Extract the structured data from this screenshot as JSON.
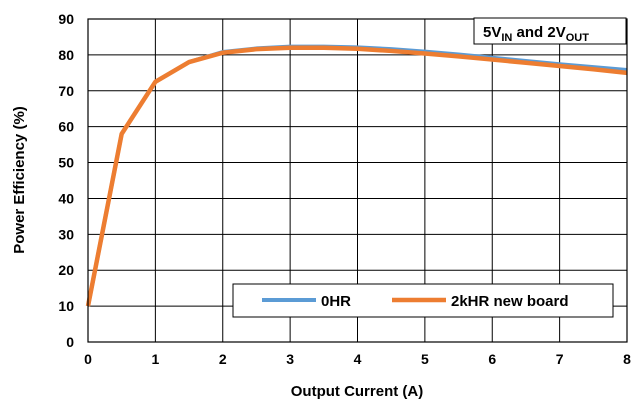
{
  "chart_data": {
    "type": "line",
    "xlabel": "Output Current (A)",
    "ylabel": "Power Efficiency (%)",
    "xlim": [
      0,
      8
    ],
    "ylim": [
      0,
      90
    ],
    "x_ticks": [
      0,
      1,
      2,
      3,
      4,
      5,
      6,
      7,
      8
    ],
    "y_ticks": [
      0,
      10,
      20,
      30,
      40,
      50,
      60,
      70,
      80,
      90
    ],
    "grid": true,
    "annotation": {
      "base1": "5V",
      "sub1": "IN",
      "middle": " and 2V",
      "sub2": "OUT",
      "position": "top-right"
    },
    "legend": {
      "position": "bottom-right",
      "entries": [
        "0HR",
        "2kHR new board"
      ]
    },
    "colors": {
      "series_0HR": "#5b9bd5",
      "series_2kHR": "#ed7d31",
      "grid": "#000000"
    },
    "series": [
      {
        "name": "0HR",
        "x": [
          0,
          0.5,
          1,
          1.5,
          2,
          2.5,
          3,
          3.5,
          4,
          4.5,
          5,
          5.5,
          6,
          6.5,
          7,
          7.5,
          8
        ],
        "y": [
          10,
          58,
          72.5,
          78,
          80.8,
          81.8,
          82.3,
          82.3,
          82.1,
          81.6,
          80.9,
          80.1,
          79.2,
          78.3,
          77.4,
          76.6,
          75.8
        ]
      },
      {
        "name": "2kHR new board",
        "x": [
          0,
          0.5,
          1,
          1.5,
          2,
          2.5,
          3,
          3.5,
          4,
          4.5,
          5,
          5.5,
          6,
          6.5,
          7,
          7.5,
          8
        ],
        "y": [
          10,
          58,
          72.5,
          78,
          80.6,
          81.6,
          82.0,
          82.0,
          81.7,
          81.1,
          80.4,
          79.6,
          78.7,
          77.8,
          76.9,
          76.0,
          75.0
        ]
      }
    ]
  }
}
